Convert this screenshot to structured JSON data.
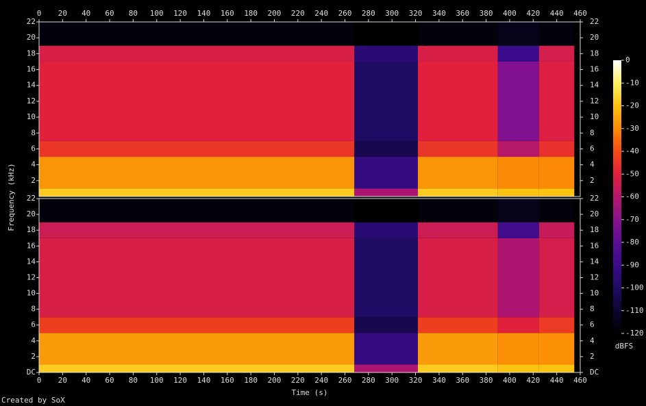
{
  "chart_data": {
    "type": "spectrogram",
    "xlabel": "Time (s)",
    "ylabel": "Frequency (kHz)",
    "footer": "Created by SoX",
    "zlabel": "dBFS",
    "xlim": [
      0,
      460
    ],
    "xticks": [
      0,
      20,
      40,
      60,
      80,
      100,
      120,
      140,
      160,
      180,
      200,
      220,
      240,
      260,
      280,
      300,
      320,
      340,
      360,
      380,
      400,
      420,
      440,
      460
    ],
    "x_edges": [
      0,
      268,
      322,
      390,
      425,
      455,
      460
    ],
    "y_edges": [
      0,
      1,
      5,
      7,
      17,
      19,
      22
    ],
    "zlim": [
      -120,
      0
    ],
    "zticks": [
      0,
      -10,
      -20,
      -30,
      -40,
      -50,
      -60,
      -70,
      -80,
      -90,
      -100,
      -110,
      -120
    ],
    "colorscale": [
      "#ffffff",
      "#fdf060",
      "#fcc211",
      "#fb8a06",
      "#f44b14",
      "#e0203d",
      "#b5176b",
      "#8a128c",
      "#5b0e95",
      "#3a0b8a",
      "#1f0b63",
      "#0d0530",
      "#000000"
    ],
    "channels": [
      {
        "ylim": [
          0,
          22
        ],
        "yticks": [
          2,
          4,
          6,
          8,
          10,
          12,
          14,
          16,
          18,
          20,
          22
        ],
        "z": [
          [
            -18,
            -62,
            -18,
            -20,
            -20,
            -120
          ],
          [
            -28,
            -92,
            -28,
            -30,
            -30,
            -120
          ],
          [
            -45,
            -104,
            -45,
            -60,
            -46,
            -120
          ],
          [
            -50,
            -100,
            -50,
            -72,
            -51,
            -120
          ],
          [
            -52,
            -96,
            -52,
            -90,
            -53,
            -120
          ],
          [
            -118,
            -120,
            -118,
            -115,
            -118,
            -120
          ]
        ]
      },
      {
        "ylim": [
          0,
          22
        ],
        "yticks": [
          {
            "value": 0,
            "label": "DC"
          },
          2,
          4,
          6,
          8,
          10,
          12,
          14,
          16,
          18,
          20,
          22
        ],
        "z": [
          [
            -18,
            -62,
            -18,
            -20,
            -20,
            -120
          ],
          [
            -27,
            -92,
            -27,
            -29,
            -29,
            -120
          ],
          [
            -43,
            -104,
            -43,
            -50,
            -44,
            -120
          ],
          [
            -52,
            -100,
            -52,
            -62,
            -53,
            -120
          ],
          [
            -55,
            -96,
            -55,
            -88,
            -56,
            -120
          ],
          [
            -118,
            -120,
            -118,
            -115,
            -118,
            -120
          ]
        ]
      }
    ]
  }
}
